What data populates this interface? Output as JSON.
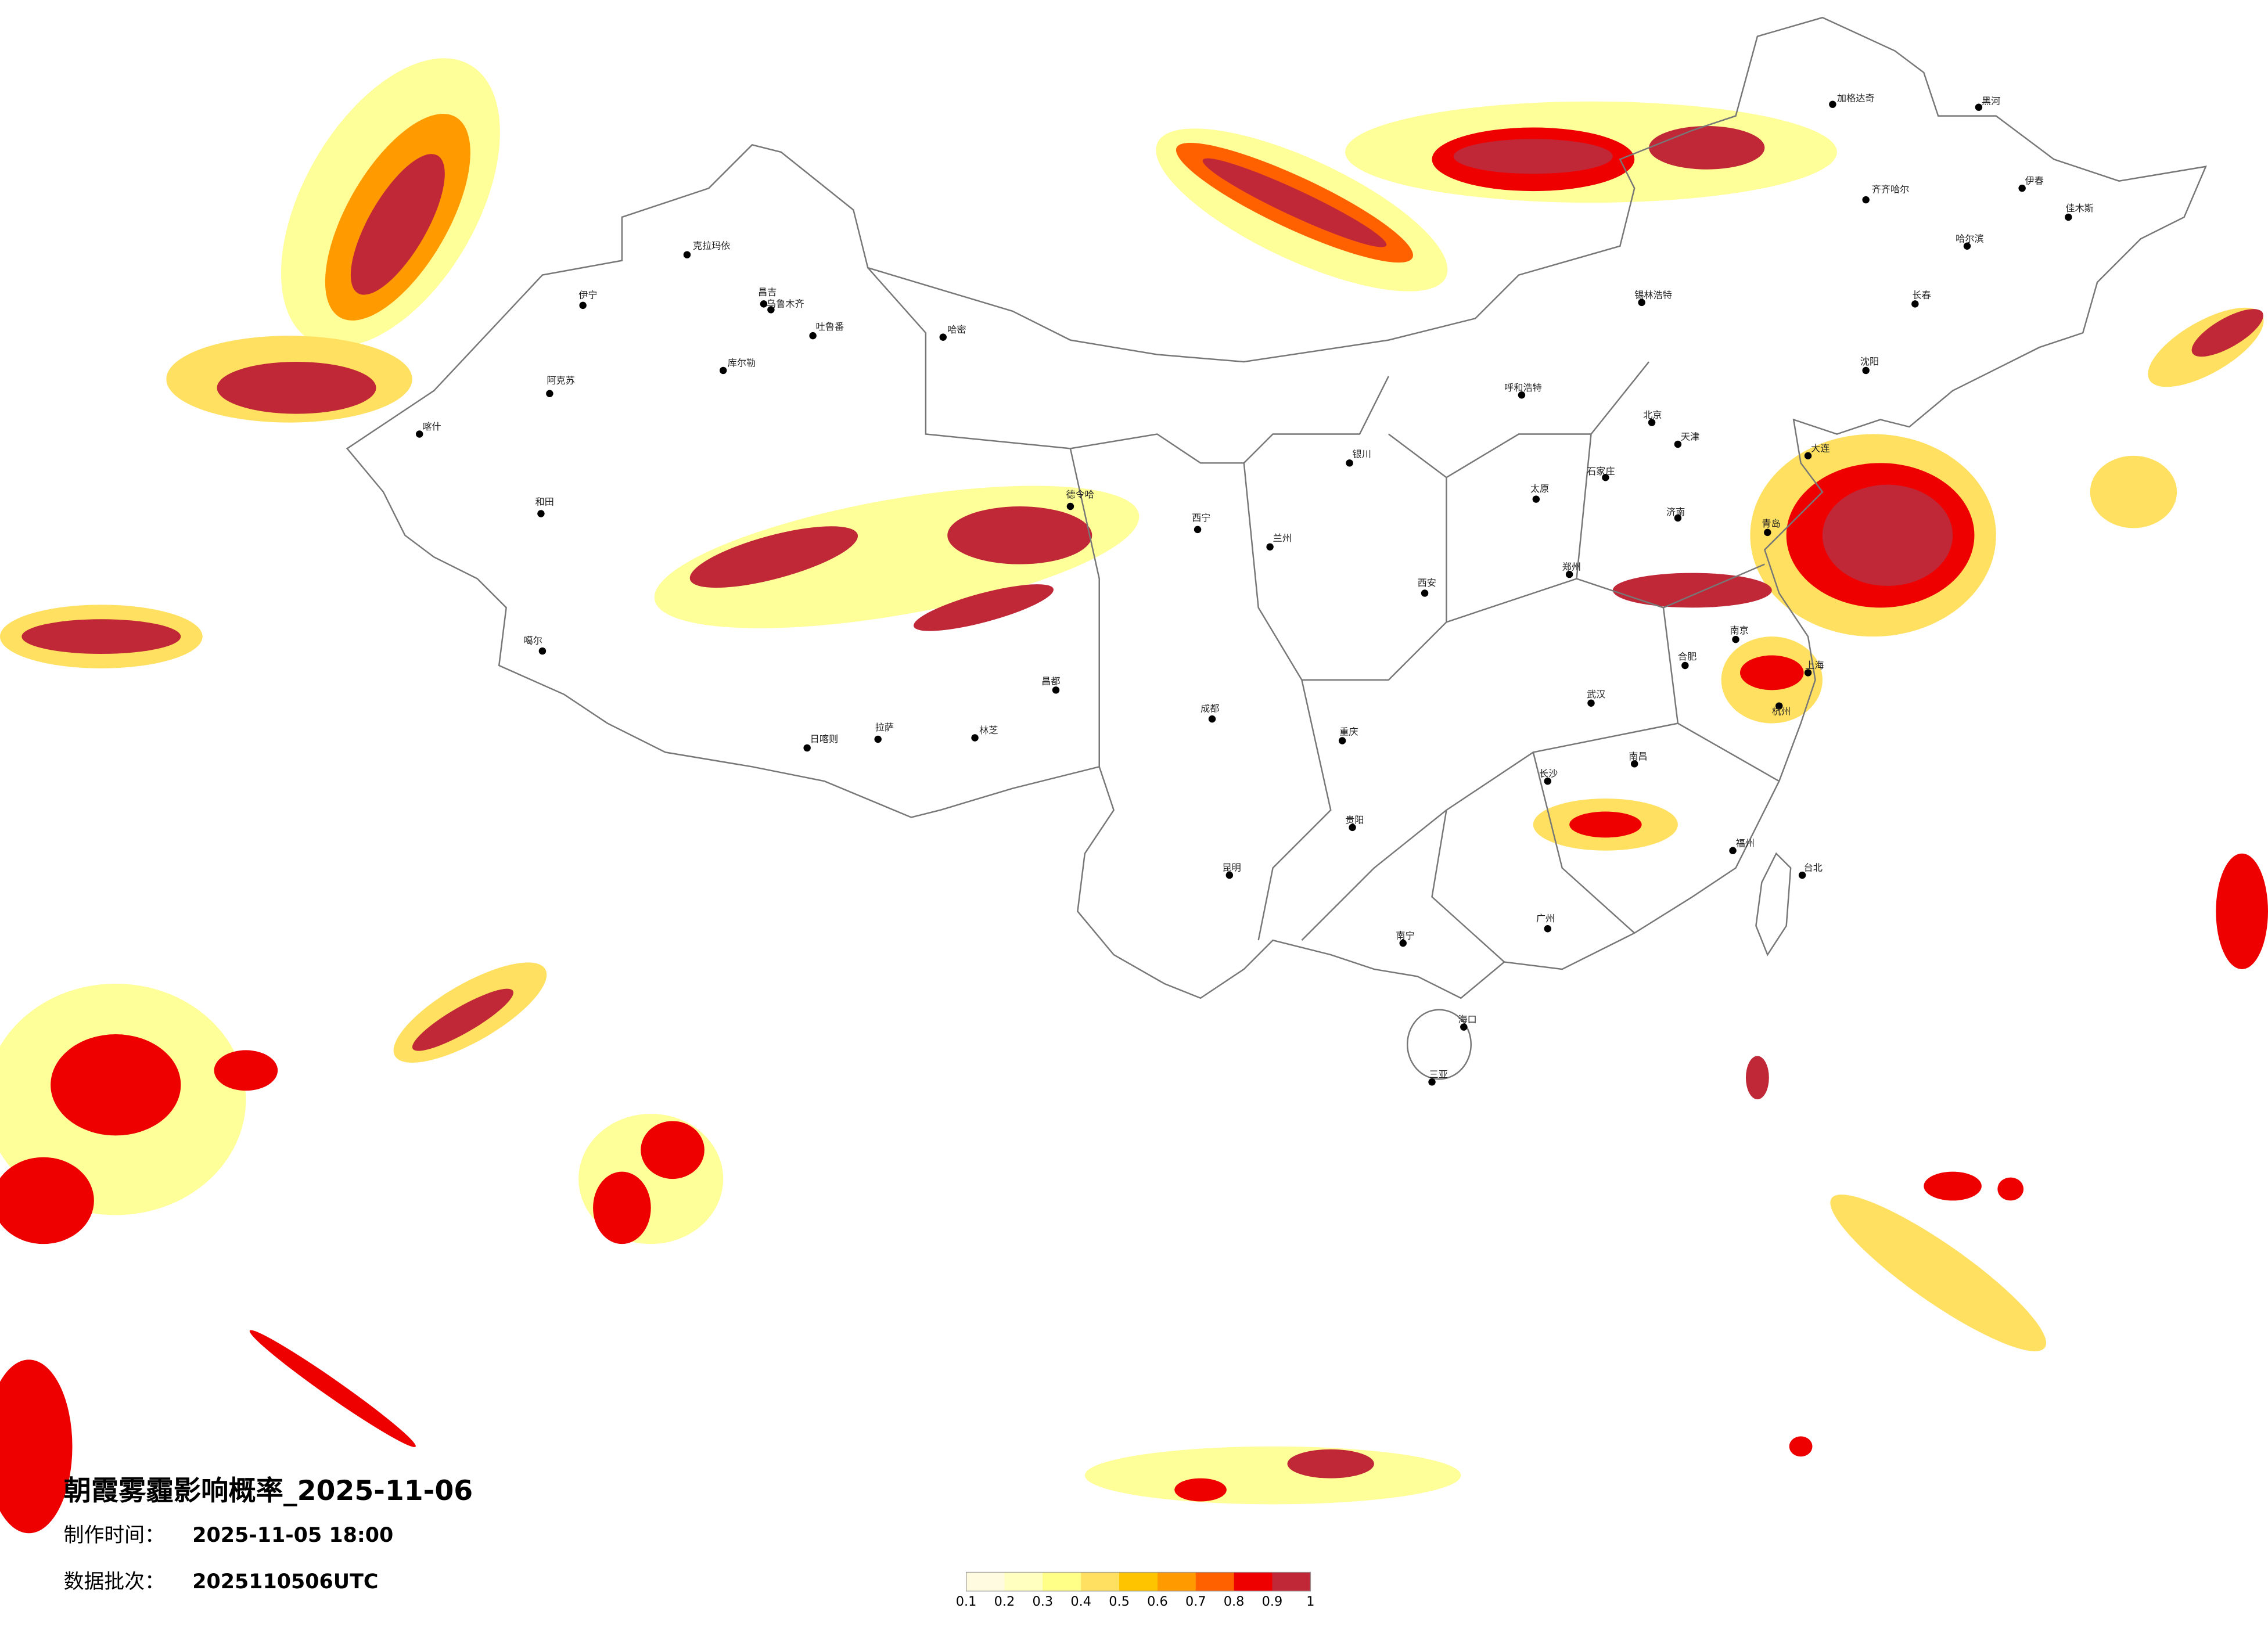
{
  "title": "朝霞雾霾影响概率_2025-11-06",
  "made_label": "制作时间：",
  "made_time": "2025-11-05 18:00",
  "batch_label": "数据批次：",
  "batch": "2025110506UTC",
  "legend": {
    "ticks": [
      0.1,
      0.2,
      0.3,
      0.4,
      0.5,
      0.6,
      0.7,
      0.8,
      0.9,
      1
    ],
    "colors": [
      "#fffbe0",
      "#ffffc0",
      "#ffff88",
      "#ffe060",
      "#ffc400",
      "#ff9a00",
      "#ff6000",
      "#ee0000",
      "#c02838"
    ]
  },
  "cities": [
    "克拉玛依",
    "伊宁",
    "昌吉",
    "乌鲁木齐",
    "吐鲁番",
    "哈密",
    "库尔勒",
    "阿克苏",
    "喀什",
    "和田",
    "噶尔",
    "日喀则",
    "拉萨",
    "林芝",
    "昌都",
    "德令哈",
    "西宁",
    "兰州",
    "银川",
    "呼和浩特",
    "锡林浩特",
    "北京",
    "天津",
    "石家庄",
    "太原",
    "济南",
    "郑州",
    "西安",
    "成都",
    "重庆",
    "武汉",
    "合肥",
    "南京",
    "上海",
    "杭州",
    "南昌",
    "长沙",
    "福州",
    "贵阳",
    "昆明",
    "南宁",
    "广州",
    "海口",
    "三亚",
    "台北",
    "沈阳",
    "长春",
    "哈尔滨",
    "齐齐哈尔",
    "加格达奇",
    "黑河",
    "伊春",
    "佳木斯",
    "大连",
    "青岛"
  ]
}
